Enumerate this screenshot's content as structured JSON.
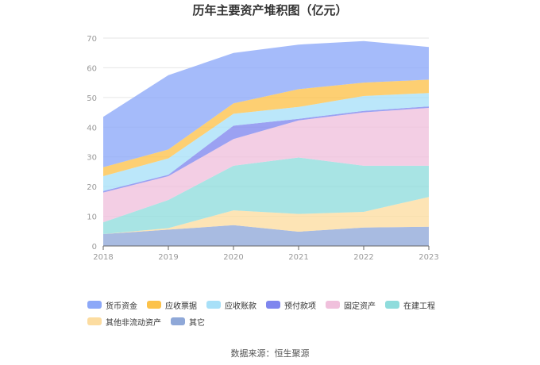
{
  "chart_data": {
    "type": "area",
    "stacked": true,
    "title": "历年主要资产堆积图（亿元）",
    "x": [
      "2018",
      "2019",
      "2020",
      "2021",
      "2022",
      "2023"
    ],
    "ylim": [
      0,
      70
    ],
    "yticks": [
      "0",
      "10",
      "20",
      "30",
      "40",
      "50",
      "60",
      "70"
    ],
    "grid": true,
    "legend_position": "bottom",
    "series": [
      {
        "name": "其它",
        "color": "#8fa8d8",
        "values": [
          4.0,
          5.5,
          7.0,
          4.8,
          6.2,
          6.5
        ]
      },
      {
        "name": "其他非流动资产",
        "color": "#fcdca0",
        "values": [
          0.0,
          0.5,
          5.0,
          6.0,
          5.3,
          10.0
        ]
      },
      {
        "name": "在建工程",
        "color": "#8fdcdc",
        "values": [
          4.0,
          9.5,
          15.0,
          19.0,
          15.5,
          10.5
        ]
      },
      {
        "name": "固定资产",
        "color": "#f0c0dc",
        "values": [
          10.0,
          8.0,
          9.0,
          12.5,
          18.0,
          19.5
        ]
      },
      {
        "name": "预付款项",
        "color": "#7f86ee",
        "values": [
          0.5,
          0.5,
          4.5,
          0.5,
          0.5,
          0.5
        ]
      },
      {
        "name": "应收账款",
        "color": "#a8e0f8",
        "values": [
          5.0,
          5.5,
          4.0,
          4.0,
          5.0,
          4.5
        ]
      },
      {
        "name": "应收票据",
        "color": "#fcc24a",
        "values": [
          3.0,
          3.0,
          3.5,
          6.0,
          4.5,
          4.5
        ]
      },
      {
        "name": "货币资金",
        "color": "#8ca8f8",
        "values": [
          17.0,
          25.0,
          17.0,
          15.0,
          14.0,
          11.0
        ]
      }
    ]
  },
  "legend": {
    "items": [
      {
        "label": "货币资金",
        "color": "#8ca8f8"
      },
      {
        "label": "应收票据",
        "color": "#fcc24a"
      },
      {
        "label": "应收账款",
        "color": "#a8e0f8"
      },
      {
        "label": "预付款项",
        "color": "#7f86ee"
      },
      {
        "label": "固定资产",
        "color": "#f0c0dc"
      },
      {
        "label": "在建工程",
        "color": "#8fdcdc"
      },
      {
        "label": "其他非流动资产",
        "color": "#fcdca0"
      },
      {
        "label": "其它",
        "color": "#8fa8d8"
      }
    ]
  },
  "footer": {
    "source": "数据来源：恒生聚源"
  }
}
